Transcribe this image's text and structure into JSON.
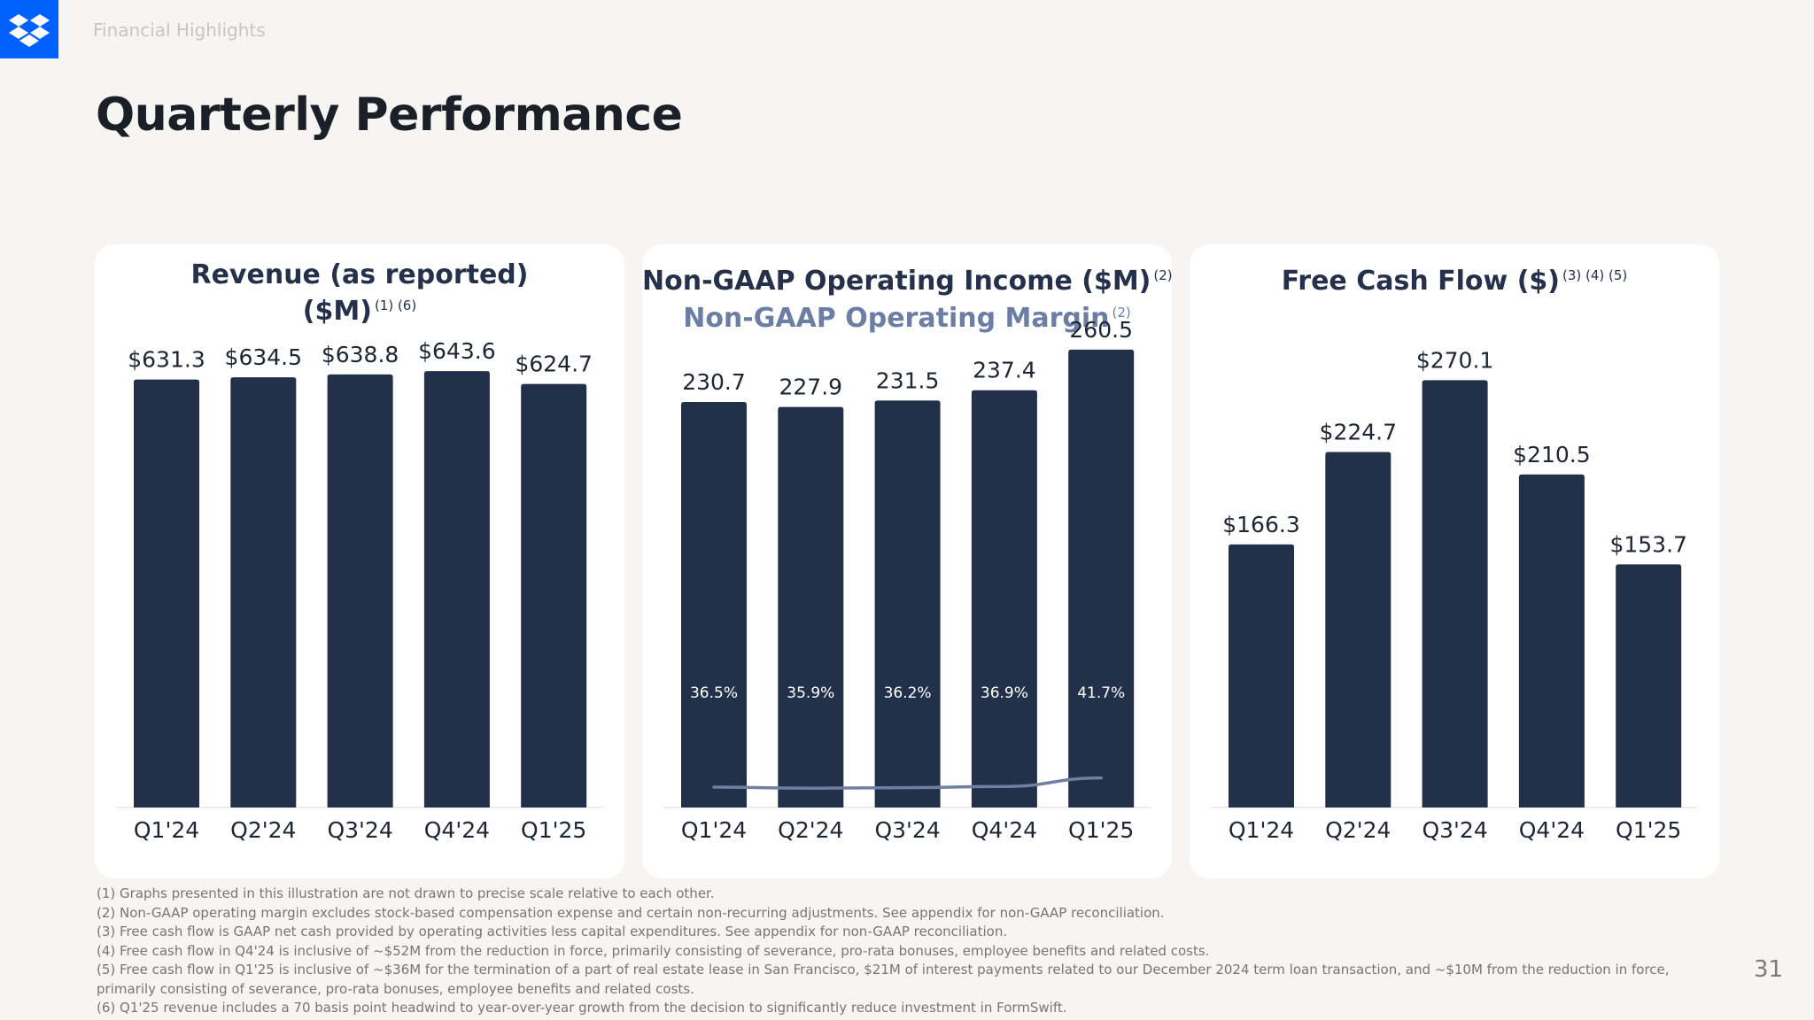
{
  "header": {
    "section_label": "Financial Highlights",
    "title": "Quarterly Performance",
    "page_number": "31"
  },
  "colors": {
    "bar": "#233049",
    "line": "#6f7ea3",
    "accent": "#0061fe"
  },
  "icons": {
    "logo": "dropbox-logo-icon"
  },
  "chart_data": [
    {
      "type": "bar",
      "title": "Revenue (as reported) ($M)",
      "title_line1": "Revenue (as reported)",
      "title_line2": "($M)",
      "title_sup": "(1) (6)",
      "categories": [
        "Q1'24",
        "Q2'24",
        "Q3'24",
        "Q4'24",
        "Q1'25"
      ],
      "values": [
        631.3,
        634.5,
        638.8,
        643.6,
        624.7
      ],
      "data_labels": [
        "$631.3",
        "$634.5",
        "$638.8",
        "$643.6",
        "$624.7"
      ],
      "ylim": [
        0,
        700
      ],
      "grid": false
    },
    {
      "type": "bar",
      "title": "Non-GAAP Operating Income ($M)",
      "title_sup": "(2)",
      "subtitle": "Non-GAAP Operating Margin",
      "subtitle_sup": "(2)",
      "categories": [
        "Q1'24",
        "Q2'24",
        "Q3'24",
        "Q4'24",
        "Q1'25"
      ],
      "values": [
        230.7,
        227.9,
        231.5,
        237.4,
        260.5
      ],
      "data_labels": [
        "230.7",
        "227.9",
        "231.5",
        "237.4",
        "260.5"
      ],
      "ylim": [
        0,
        270
      ],
      "grid": false,
      "line_series": {
        "values": [
          36.5,
          35.9,
          36.2,
          36.9,
          41.7
        ],
        "data_labels": [
          "36.5%",
          "35.9%",
          "36.2%",
          "36.9%",
          "41.7%"
        ],
        "ylim": [
          0,
          100
        ]
      }
    },
    {
      "type": "bar",
      "title": "Free Cash Flow ($)",
      "title_sup": "(3) (4) (5)",
      "categories": [
        "Q1'24",
        "Q2'24",
        "Q3'24",
        "Q4'24",
        "Q1'25"
      ],
      "values": [
        166.3,
        224.7,
        270.1,
        210.5,
        153.7
      ],
      "data_labels": [
        "$166.3",
        "$224.7",
        "$270.1",
        "$210.5",
        "$153.7"
      ],
      "ylim": [
        0,
        300
      ],
      "grid": false
    }
  ],
  "footnotes": [
    "(1) Graphs presented in this illustration are not drawn to precise scale relative to each other.",
    "(2) Non-GAAP operating margin excludes stock-based compensation expense and certain non-recurring adjustments. See appendix for non-GAAP reconciliation.",
    "(3) Free cash flow is GAAP net cash provided by operating activities less capital expenditures. See appendix for non-GAAP reconciliation.",
    "(4) Free cash flow in Q4'24 is inclusive of ~$52M from the reduction in force, primarily consisting of severance, pro-rata bonuses, employee benefits and related costs.",
    "(5) Free cash flow in Q1'25 is inclusive of ~$36M for the termination of a part of real estate lease in San Francisco, $21M of interest payments related to our December 2024 term loan transaction, and ~$10M from the reduction in force,",
    "primarily consisting of severance, pro-rata bonuses, employee benefits and related costs.",
    "(6) Q1'25 revenue includes a 70 basis point headwind to year-over-year growth from the decision to significantly reduce investment in FormSwift."
  ]
}
